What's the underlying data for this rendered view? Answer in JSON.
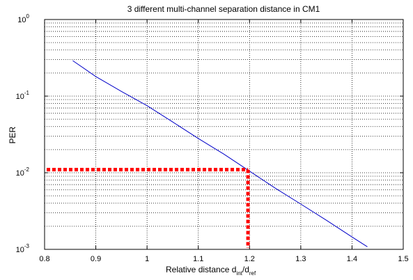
{
  "chart_data": {
    "type": "line",
    "title": "3 different multi-channel separation distance in CM1",
    "xlabel": "Relative distance",
    "xlabel_sub1": "int",
    "xlabel_sub2": "ref",
    "xlabel_d1": "d",
    "xlabel_slash": "/d",
    "ylabel": "PER",
    "xlim": [
      0.8,
      1.5
    ],
    "ylim": [
      0.001,
      1
    ],
    "yscale": "log",
    "grid": true,
    "x_ticks": [
      "0.8",
      "0.9",
      "1",
      "1.1",
      "1.2",
      "1.3",
      "1.4",
      "1.5"
    ],
    "y_ticks": [
      {
        "base": "10",
        "exp": "0"
      },
      {
        "base": "10",
        "exp": "-1"
      },
      {
        "base": "10",
        "exp": "-2"
      },
      {
        "base": "10",
        "exp": "-3"
      }
    ],
    "series": [
      {
        "color": "#0000c8",
        "x": [
          0.855,
          0.9,
          0.95,
          1.0,
          1.05,
          1.1,
          1.15,
          1.2,
          1.25,
          1.3,
          1.35,
          1.4,
          1.43
        ],
        "y": [
          0.29,
          0.18,
          0.115,
          0.075,
          0.046,
          0.028,
          0.0175,
          0.0105,
          0.0063,
          0.0039,
          0.0024,
          0.00145,
          0.00108
        ]
      }
    ],
    "reference_lines": {
      "color": "#ff0000",
      "x": 1.197,
      "y": 0.011
    }
  }
}
